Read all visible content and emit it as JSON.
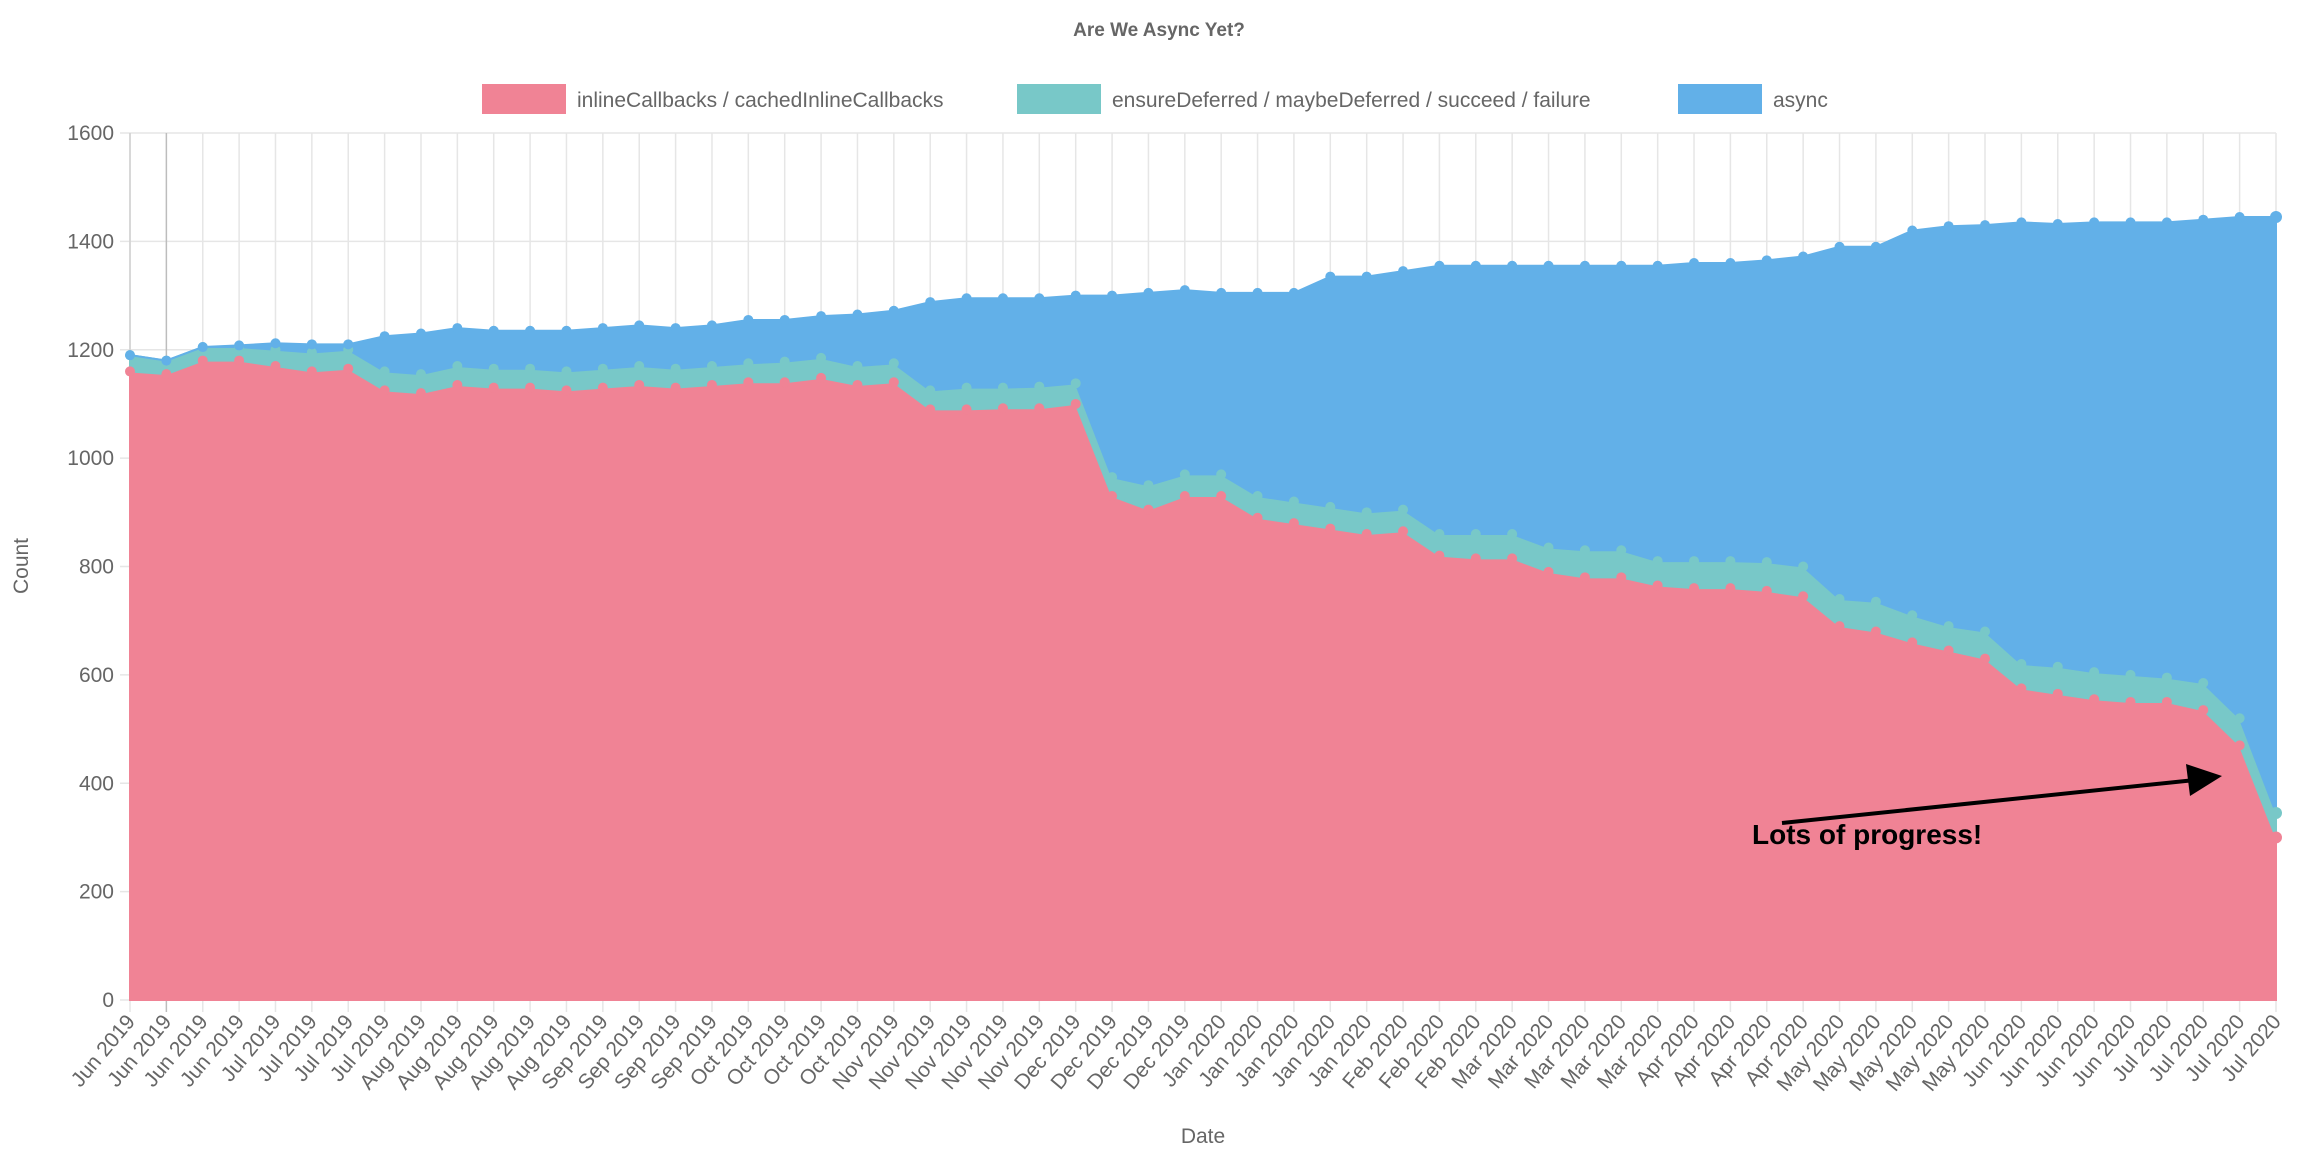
{
  "chart_data": {
    "type": "area",
    "stacked": true,
    "title": "Are We Async Yet?",
    "xlabel": "Date",
    "ylabel": "Count",
    "ylim": [
      0,
      1600
    ],
    "yticks": [
      0,
      200,
      400,
      600,
      800,
      1000,
      1200,
      1400,
      1600
    ],
    "grid": true,
    "legend_position": "top",
    "categories": [
      "Jun 2019",
      "Jun 2019",
      "Jun 2019",
      "Jun 2019",
      "Jul 2019",
      "Jul 2019",
      "Jul 2019",
      "Jul 2019",
      "Aug 2019",
      "Aug 2019",
      "Aug 2019",
      "Aug 2019",
      "Aug 2019",
      "Sep 2019",
      "Sep 2019",
      "Sep 2019",
      "Sep 2019",
      "Oct 2019",
      "Oct 2019",
      "Oct 2019",
      "Oct 2019",
      "Nov 2019",
      "Nov 2019",
      "Nov 2019",
      "Nov 2019",
      "Nov 2019",
      "Dec 2019",
      "Dec 2019",
      "Dec 2019",
      "Dec 2019",
      "Jan 2020",
      "Jan 2020",
      "Jan 2020",
      "Jan 2020",
      "Jan 2020",
      "Feb 2020",
      "Feb 2020",
      "Feb 2020",
      "Mar 2020",
      "Mar 2020",
      "Mar 2020",
      "Mar 2020",
      "Mar 2020",
      "Apr 2020",
      "Apr 2020",
      "Apr 2020",
      "Apr 2020",
      "May 2020",
      "May 2020",
      "May 2020",
      "May 2020",
      "May 2020",
      "Jun 2020",
      "Jun 2020",
      "Jun 2020",
      "Jun 2020",
      "Jul 2020",
      "Jul 2020",
      "Jul 2020",
      "Jul 2020"
    ],
    "series": [
      {
        "name": "inlineCallbacks / cachedInlineCallbacks",
        "color": "#f08395",
        "values": [
          1160,
          1155,
          1180,
          1180,
          1170,
          1160,
          1165,
          1125,
          1120,
          1135,
          1130,
          1130,
          1125,
          1130,
          1135,
          1130,
          1135,
          1140,
          1140,
          1148,
          1135,
          1140,
          1090,
          1090,
          1092,
          1092,
          1100,
          930,
          905,
          930,
          930,
          890,
          880,
          870,
          860,
          865,
          820,
          815,
          815,
          790,
          780,
          780,
          765,
          760,
          760,
          755,
          745,
          690,
          680,
          660,
          645,
          630,
          575,
          565,
          555,
          550,
          550,
          535,
          470,
          300
        ]
      },
      {
        "name": "ensureDeferred / maybeDeferred / succeed / failure",
        "color": "#78c8c8",
        "values": [
          30,
          25,
          25,
          25,
          30,
          35,
          35,
          35,
          35,
          35,
          35,
          35,
          35,
          35,
          35,
          35,
          35,
          35,
          38,
          37,
          35,
          35,
          35,
          40,
          38,
          40,
          38,
          35,
          45,
          40,
          40,
          40,
          40,
          40,
          40,
          40,
          40,
          45,
          45,
          45,
          50,
          50,
          45,
          50,
          50,
          53,
          55,
          50,
          55,
          50,
          45,
          50,
          45,
          50,
          50,
          50,
          45,
          50,
          50,
          45
        ]
      },
      {
        "name": "async",
        "color": "#62b0e8",
        "values": [
          0,
          0,
          0,
          3,
          12,
          15,
          10,
          65,
          75,
          70,
          70,
          70,
          75,
          75,
          75,
          75,
          75,
          80,
          77,
          77,
          95,
          97,
          163,
          165,
          165,
          163,
          162,
          335,
          355,
          340,
          335,
          375,
          385,
          425,
          435,
          440,
          495,
          495,
          495,
          520,
          525,
          525,
          545,
          550,
          550,
          557,
          572,
          650,
          655,
          710,
          738,
          750,
          815,
          817,
          830,
          835,
          840,
          855,
          925,
          1100
        ]
      }
    ],
    "annotation": {
      "text": "Lots of progress!",
      "arrow": true
    }
  }
}
